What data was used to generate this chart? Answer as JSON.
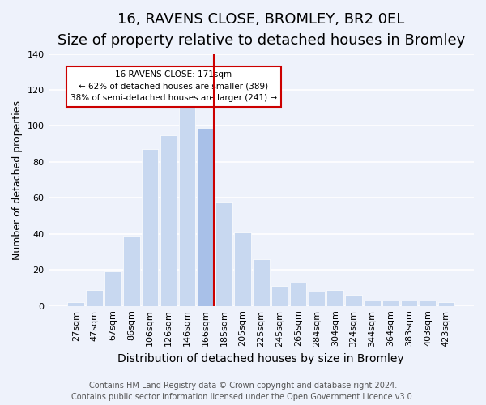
{
  "title": "16, RAVENS CLOSE, BROMLEY, BR2 0EL",
  "subtitle": "Size of property relative to detached houses in Bromley",
  "xlabel": "Distribution of detached houses by size in Bromley",
  "ylabel": "Number of detached properties",
  "categories": [
    "27sqm",
    "47sqm",
    "67sqm",
    "86sqm",
    "106sqm",
    "126sqm",
    "146sqm",
    "166sqm",
    "185sqm",
    "205sqm",
    "225sqm",
    "245sqm",
    "265sqm",
    "284sqm",
    "304sqm",
    "324sqm",
    "344sqm",
    "364sqm",
    "383sqm",
    "403sqm",
    "423sqm"
  ],
  "values": [
    2,
    9,
    19,
    39,
    87,
    95,
    111,
    99,
    58,
    41,
    26,
    11,
    13,
    8,
    9,
    6,
    3,
    3,
    3,
    3,
    2
  ],
  "bar_color": "#c8d8f0",
  "highlight_bar_index": 7,
  "highlight_bar_color": "#a8c0e8",
  "vertical_line_color": "#cc0000",
  "annotation_box_text": "16 RAVENS CLOSE: 171sqm\n← 62% of detached houses are smaller (389)\n38% of semi-detached houses are larger (241) →",
  "ylim": [
    0,
    140
  ],
  "yticks": [
    0,
    20,
    40,
    60,
    80,
    100,
    120,
    140
  ],
  "background_color": "#eef2fb",
  "footer_line1": "Contains HM Land Registry data © Crown copyright and database right 2024.",
  "footer_line2": "Contains public sector information licensed under the Open Government Licence v3.0.",
  "title_fontsize": 13,
  "subtitle_fontsize": 11,
  "xlabel_fontsize": 10,
  "ylabel_fontsize": 9,
  "tick_fontsize": 8,
  "footer_fontsize": 7
}
